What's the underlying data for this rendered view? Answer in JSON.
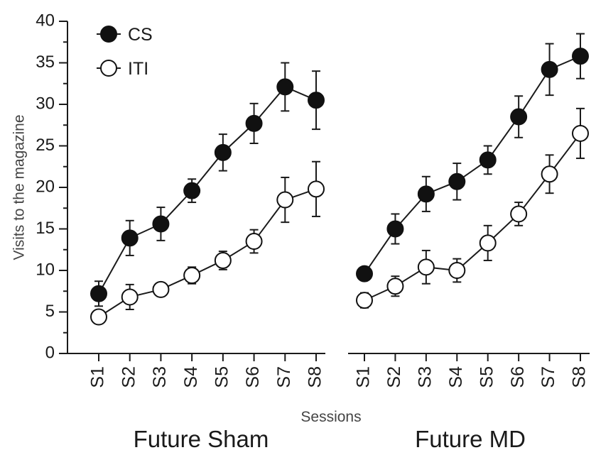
{
  "chart_data": {
    "type": "line",
    "xlabel": "Sessions",
    "ylabel": "Visits to the magazine",
    "ylim": [
      0,
      40
    ],
    "yticks": [
      0,
      5,
      10,
      15,
      20,
      25,
      30,
      35,
      40
    ],
    "grid": false,
    "legend_placement": "top-left",
    "legend": [
      "CS",
      "ITI"
    ],
    "groups": [
      {
        "label": "Future Sham",
        "categories": [
          "S1",
          "S2",
          "S3",
          "S4",
          "S5",
          "S6",
          "S7",
          "S8"
        ],
        "series": [
          {
            "name": "CS",
            "marker": "filled",
            "values": [
              7.2,
              13.9,
              15.6,
              19.6,
              24.2,
              27.7,
              32.1,
              30.5
            ],
            "errors": [
              1.5,
              2.1,
              2.0,
              1.4,
              2.2,
              2.4,
              2.9,
              3.5
            ]
          },
          {
            "name": "ITI",
            "marker": "open",
            "values": [
              4.4,
              6.8,
              7.7,
              9.4,
              11.2,
              13.5,
              18.5,
              19.8
            ],
            "errors": [
              0.6,
              1.5,
              0.8,
              1.0,
              1.1,
              1.4,
              2.7,
              3.3
            ]
          }
        ]
      },
      {
        "label": "Future MD",
        "categories": [
          "S1",
          "S2",
          "S3",
          "S4",
          "S5",
          "S6",
          "S7",
          "S8"
        ],
        "series": [
          {
            "name": "CS",
            "marker": "filled",
            "values": [
              9.6,
              15.0,
              19.2,
              20.7,
              23.3,
              28.5,
              34.2,
              35.8
            ],
            "errors": [
              0.5,
              1.8,
              2.1,
              2.2,
              1.7,
              2.5,
              3.1,
              2.7
            ]
          },
          {
            "name": "ITI",
            "marker": "open",
            "values": [
              6.4,
              8.1,
              10.4,
              10.0,
              13.3,
              16.8,
              21.6,
              26.5
            ],
            "errors": [
              0.9,
              1.2,
              2.0,
              1.4,
              2.1,
              1.4,
              2.3,
              3.0
            ]
          }
        ]
      }
    ]
  }
}
